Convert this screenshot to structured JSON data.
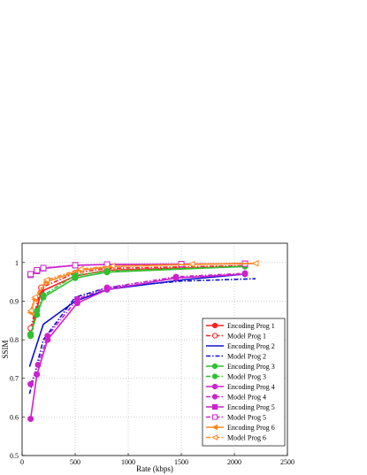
{
  "chart_data": {
    "type": "line",
    "title": "",
    "xlabel": "Rate (kbps)",
    "ylabel": "SSIM",
    "xlim": [
      0,
      2500
    ],
    "ylim": [
      0.5,
      1.05
    ],
    "xticks": [
      0,
      500,
      1000,
      1500,
      2000,
      2500
    ],
    "yticks": [
      0.5,
      0.6,
      0.7,
      0.8,
      0.9,
      1
    ],
    "grid": true,
    "legend_position": "bottom-right",
    "series": [
      {
        "name": "Encoding Prog 1",
        "color": "#ff2020",
        "dash": "solid",
        "marker": "circle-filled",
        "x": [
          80,
          180,
          500,
          800,
          2100
        ],
        "y": [
          0.815,
          0.925,
          0.965,
          0.98,
          0.99
        ]
      },
      {
        "name": "Model Prog 1",
        "color": "#ff2020",
        "dash": "dashdot",
        "marker": "circle-open",
        "x": [
          80,
          180,
          500,
          800,
          2100
        ],
        "y": [
          0.83,
          0.935,
          0.973,
          0.985,
          0.992
        ]
      },
      {
        "name": "Encoding Prog 2",
        "color": "#1010d0",
        "dash": "solid",
        "marker": "none",
        "x": [
          70,
          200,
          500,
          800,
          1500,
          2100
        ],
        "y": [
          0.73,
          0.84,
          0.9,
          0.93,
          0.955,
          0.97
        ]
      },
      {
        "name": "Model Prog 2",
        "color": "#1010d0",
        "dash": "dashdot",
        "marker": "none",
        "x": [
          70,
          200,
          500,
          800,
          1500,
          2200
        ],
        "y": [
          0.66,
          0.8,
          0.91,
          0.935,
          0.952,
          0.958
        ]
      },
      {
        "name": "Encoding Prog 3",
        "color": "#30c030",
        "dash": "solid",
        "marker": "circle-filled",
        "x": [
          80,
          140,
          200,
          500,
          800,
          2100
        ],
        "y": [
          0.815,
          0.865,
          0.91,
          0.96,
          0.975,
          0.99
        ]
      },
      {
        "name": "Model Prog 3",
        "color": "#30c030",
        "dash": "dashdot",
        "marker": "circle-filled",
        "x": [
          80,
          140,
          200,
          500,
          800,
          2100
        ],
        "y": [
          0.81,
          0.875,
          0.915,
          0.967,
          0.978,
          0.99
        ]
      },
      {
        "name": "Encoding Prog 4",
        "color": "#cc22cc",
        "dash": "solid",
        "marker": "circle-filled",
        "x": [
          80,
          140,
          240,
          520,
          800,
          1450,
          2100
        ],
        "y": [
          0.595,
          0.71,
          0.8,
          0.895,
          0.93,
          0.96,
          0.97
        ]
      },
      {
        "name": "Model Prog 4",
        "color": "#cc22cc",
        "dash": "dashdot",
        "marker": "circle-filled",
        "x": [
          80,
          150,
          240,
          520,
          800,
          1450,
          2100
        ],
        "y": [
          0.685,
          0.735,
          0.81,
          0.905,
          0.935,
          0.963,
          0.972
        ]
      },
      {
        "name": "Encoding Prog 5",
        "color": "#cc22cc",
        "dash": "solid",
        "marker": "square-filled",
        "x": [
          80,
          140,
          200,
          500,
          800,
          1500,
          2100
        ],
        "y": [
          0.968,
          0.978,
          0.985,
          0.993,
          0.995,
          0.996,
          0.997
        ]
      },
      {
        "name": "Model Prog 5",
        "color": "#cc22cc",
        "dash": "dashdot",
        "marker": "square-open",
        "x": [
          80,
          140,
          200,
          500,
          800,
          1500,
          2100
        ],
        "y": [
          0.97,
          0.98,
          0.986,
          0.993,
          0.995,
          0.996,
          0.997
        ]
      },
      {
        "name": "Encoding Prog 6",
        "color": "#ff8820",
        "dash": "solid",
        "marker": "triangle-left-filled",
        "x": [
          80,
          120,
          230,
          550,
          850,
          1600,
          2200
        ],
        "y": [
          0.87,
          0.905,
          0.95,
          0.98,
          0.99,
          0.995,
          0.998
        ]
      },
      {
        "name": "Model Prog 6",
        "color": "#ff8820",
        "dash": "dashdot",
        "marker": "triangle-left-open",
        "x": [
          80,
          120,
          230,
          550,
          850,
          1600,
          2200
        ],
        "y": [
          0.875,
          0.91,
          0.955,
          0.983,
          0.991,
          0.996,
          0.998
        ]
      }
    ]
  }
}
